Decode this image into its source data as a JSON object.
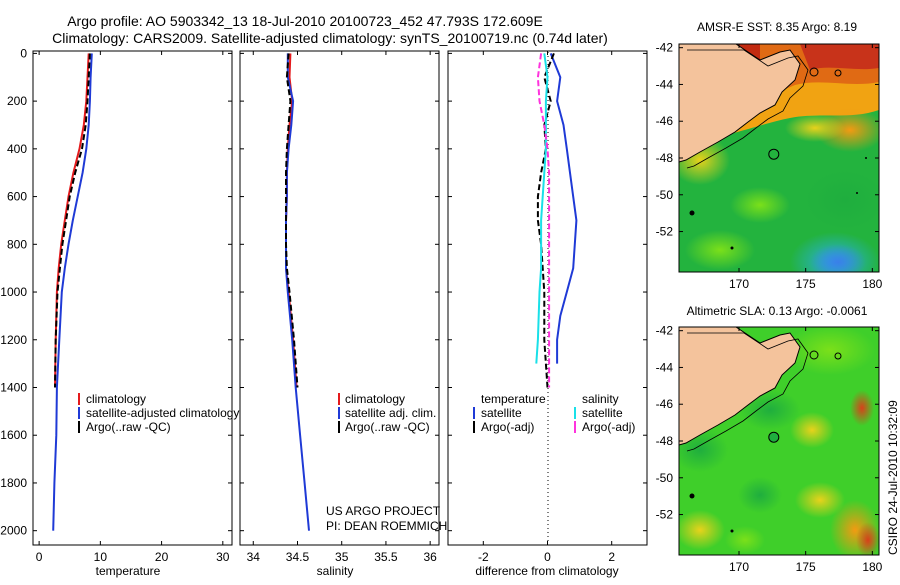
{
  "header": {
    "line1": "Argo profile: AO 5903342_13 18-Jul-2010 20100723_452 47.793S 172.609E",
    "line2": "Climatology: CARS2009. Satellite-adjusted climatology: synTS_20100719.nc (0.74d later)"
  },
  "colors": {
    "climatology": "#e41a1c",
    "satellite": "#1f3ad6",
    "argo": "#000000",
    "salinity_satellite": "#19e0e8",
    "salinity_argo": "#ff33dd",
    "land": "#f4c39c"
  },
  "chart_data": [
    {
      "type": "line",
      "id": "temperature",
      "xlabel": "temperature",
      "ylabel": "",
      "xlim": [
        -1,
        31.5
      ],
      "ylim": [
        2060,
        -10
      ],
      "xticks": [
        0,
        10,
        20,
        30
      ],
      "xtick_labels": [
        "0",
        "10",
        "20",
        "30"
      ],
      "yticks": [
        0,
        200,
        400,
        600,
        800,
        1000,
        1200,
        1400,
        1600,
        1800,
        2000
      ],
      "ytick_labels": [
        "0",
        "200",
        "400",
        "600",
        "800",
        "1000",
        "1200",
        "1400",
        "1600",
        "1800",
        "2000"
      ],
      "legend": [
        "climatology",
        "satellite-adjusted climatology",
        "Argo(..raw -QC)"
      ],
      "series": [
        {
          "name": "climatology",
          "color_key": "climatology",
          "dash": "",
          "x": [
            8.1,
            7.9,
            7.7,
            7.3,
            6.6,
            5.6,
            4.8,
            4.2,
            3.6,
            3.2,
            2.9,
            2.7,
            2.6
          ],
          "y": [
            0,
            100,
            200,
            300,
            400,
            500,
            600,
            700,
            800,
            900,
            1000,
            1200,
            1400
          ]
        },
        {
          "name": "satellite-adjusted climatology",
          "color_key": "satellite",
          "dash": "",
          "x": [
            8.6,
            8.4,
            8.3,
            8.1,
            7.7,
            7.1,
            6.3,
            5.5,
            4.8,
            4.2,
            3.7,
            3.3,
            2.9,
            2.8,
            2.5,
            2.3
          ],
          "y": [
            0,
            100,
            200,
            300,
            400,
            500,
            600,
            700,
            800,
            900,
            1000,
            1200,
            1400,
            1600,
            1800,
            2000
          ]
        },
        {
          "name": "Argo(..raw -QC)",
          "color_key": "argo",
          "dash": "6,3",
          "x": [
            8.3,
            8.1,
            7.9,
            7.6,
            7.0,
            5.9,
            5.0,
            4.4,
            3.8,
            3.4,
            3.0,
            2.7,
            2.6
          ],
          "y": [
            0,
            100,
            200,
            300,
            400,
            500,
            600,
            700,
            800,
            900,
            1000,
            1200,
            1400
          ]
        }
      ]
    },
    {
      "type": "line",
      "id": "salinity",
      "xlabel": "salinity",
      "ylabel": "",
      "xlim": [
        33.85,
        36.1
      ],
      "ylim": [
        2060,
        -10
      ],
      "xticks": [
        34,
        34.5,
        35,
        35.5,
        36
      ],
      "xtick_labels": [
        "34",
        "34.5",
        "35",
        "35.5",
        "36"
      ],
      "legend": [
        "climatology",
        "satellite adj. clim.",
        "Argo(..raw -QC)"
      ],
      "series": [
        {
          "name": "climatology",
          "color_key": "climatology",
          "dash": "",
          "x": [
            34.42,
            34.41,
            34.44,
            34.41,
            34.39,
            34.38,
            34.38,
            34.37,
            34.37,
            34.37,
            34.4,
            34.45,
            34.49
          ],
          "y": [
            0,
            100,
            200,
            300,
            400,
            500,
            600,
            700,
            800,
            900,
            1000,
            1200,
            1400
          ]
        },
        {
          "name": "satellite adj. clim.",
          "color_key": "satellite",
          "dash": "",
          "x": [
            34.39,
            34.39,
            34.45,
            34.43,
            34.4,
            34.38,
            34.38,
            34.37,
            34.37,
            34.37,
            34.39,
            34.44,
            34.48,
            34.53,
            34.58,
            34.63
          ],
          "y": [
            0,
            100,
            200,
            300,
            400,
            500,
            600,
            700,
            800,
            900,
            1000,
            1200,
            1400,
            1600,
            1800,
            2000
          ]
        },
        {
          "name": "Argo(..raw -QC)",
          "color_key": "argo",
          "dash": "6,3",
          "x": [
            34.4,
            34.38,
            34.42,
            34.4,
            34.38,
            34.37,
            34.37,
            34.37,
            34.37,
            34.38,
            34.41,
            34.46,
            34.5
          ],
          "y": [
            0,
            100,
            200,
            300,
            400,
            500,
            600,
            700,
            800,
            900,
            1000,
            1200,
            1400
          ]
        }
      ],
      "annotation": [
        "US ARGO PROJECT",
        "PI: DEAN ROEMMICH"
      ]
    },
    {
      "type": "line",
      "id": "difference",
      "xlabel": "difference from climatology",
      "ylabel": "",
      "xlim": [
        -3.1,
        3.1
      ],
      "ylim": [
        2060,
        -10
      ],
      "xticks": [
        -2,
        0,
        2
      ],
      "xtick_labels": [
        "-2",
        "0",
        "2"
      ],
      "legend_groups": [
        {
          "title": "temperature",
          "items": [
            "satellite",
            "Argo(-adj)"
          ]
        },
        {
          "title": "salinity",
          "items": [
            "satellite",
            "Argo(-adj)"
          ]
        }
      ],
      "series": [
        {
          "name": "temperature satellite",
          "color_key": "satellite",
          "dash": "",
          "x": [
            0.1,
            0.4,
            0.3,
            0.5,
            0.6,
            0.7,
            0.8,
            0.9,
            0.85,
            0.8,
            0.6,
            0.4,
            0.3,
            0.3
          ],
          "y": [
            0,
            100,
            200,
            300,
            400,
            500,
            600,
            700,
            800,
            900,
            1000,
            1100,
            1200,
            1300
          ]
        },
        {
          "name": "temperature Argo(-adj)",
          "color_key": "argo",
          "dash": "6,3",
          "x": [
            0.2,
            -0.1,
            0.1,
            -0.1,
            -0.05,
            -0.2,
            -0.3,
            -0.3,
            -0.2,
            -0.15,
            -0.1,
            -0.1,
            -0.1,
            0.0
          ],
          "y": [
            0,
            100,
            200,
            300,
            400,
            500,
            600,
            700,
            800,
            900,
            1000,
            1100,
            1200,
            1400
          ]
        },
        {
          "name": "salinity satellite",
          "color_key": "salinity_satellite",
          "dash": "",
          "x": [
            -0.1,
            0.0,
            -0.05,
            -0.05,
            -0.05,
            -0.1,
            -0.15,
            -0.2,
            -0.2,
            -0.2,
            -0.25,
            -0.3,
            -0.35
          ],
          "y": [
            0,
            100,
            200,
            300,
            400,
            500,
            600,
            700,
            800,
            900,
            1000,
            1200,
            1300
          ]
        },
        {
          "name": "salinity Argo(-adj)",
          "color_key": "salinity_argo",
          "dash": "6,3",
          "x": [
            -0.2,
            -0.3,
            -0.25,
            -0.1,
            0.0,
            0.05,
            0.05,
            0.05,
            0.05,
            0.05,
            0.05,
            0.05,
            0.05,
            0.05
          ],
          "y": [
            0,
            100,
            200,
            300,
            400,
            500,
            600,
            700,
            800,
            900,
            1000,
            1100,
            1200,
            1400
          ]
        }
      ]
    },
    {
      "type": "heatmap",
      "id": "sst_map",
      "title": "AMSR-E SST: 8.35 Argo: 8.19",
      "xlim": [
        165.5,
        180.5
      ],
      "ylim": [
        -54.2,
        -41.8
      ],
      "xticks": [
        170,
        175,
        180
      ],
      "xtick_labels": [
        "170",
        "175",
        "180"
      ],
      "yticks": [
        -42,
        -44,
        -46,
        -48,
        -50,
        -52
      ],
      "ytick_labels": [
        "-42",
        "-44",
        "-46",
        "-48",
        "-50",
        "-52"
      ],
      "argo_position": [
        172.609,
        -47.793
      ]
    },
    {
      "type": "heatmap",
      "id": "sla_map",
      "title": "Altimetric SLA: 0.13 Argo: -0.0061",
      "xlim": [
        165.5,
        180.5
      ],
      "ylim": [
        -54.2,
        -41.8
      ],
      "xticks": [
        170,
        175,
        180
      ],
      "xtick_labels": [
        "170",
        "175",
        "180"
      ],
      "yticks": [
        -42,
        -44,
        -46,
        -48,
        -50,
        -52
      ],
      "ytick_labels": [
        "-42",
        "-44",
        "-46",
        "-48",
        "-50",
        "-52"
      ],
      "argo_position": [
        172.609,
        -47.793
      ]
    }
  ],
  "footer": {
    "stamp": "CSIRO 24-Jul-2010 10:32:09"
  }
}
